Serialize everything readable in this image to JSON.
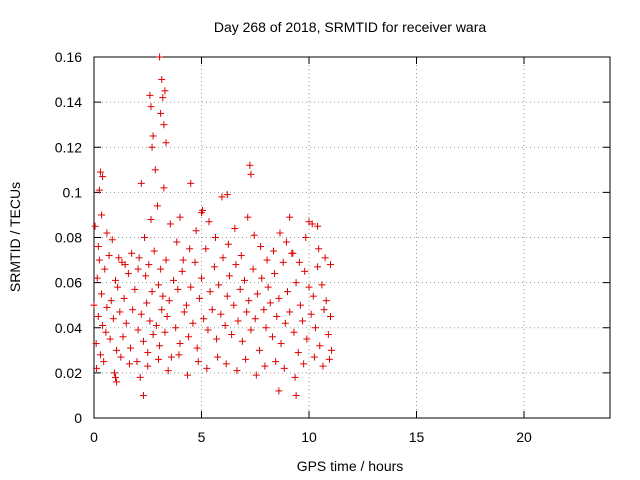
{
  "chart_data": {
    "type": "scatter",
    "title": "Day 268 of 2018, SRMTID for receiver wara",
    "xlabel": "GPS time / hours",
    "ylabel": "SRMTID / TECUs",
    "xlim": [
      0,
      24
    ],
    "ylim": [
      0,
      0.16
    ],
    "xticks": [
      0,
      5,
      10,
      15,
      20
    ],
    "xtick_labels": [
      "0",
      "5",
      "10",
      "15",
      "20"
    ],
    "yticks": [
      0,
      0.02,
      0.04,
      0.06,
      0.08,
      0.1,
      0.12,
      0.14,
      0.16
    ],
    "ytick_labels": [
      "0",
      "0.02",
      "0.04",
      "0.06",
      "0.08",
      "0.1",
      "0.12",
      "0.14",
      "0.16"
    ],
    "grid": true,
    "marker": "+",
    "color": "#dd0000",
    "series": [
      {
        "name": "SRMTID",
        "x": [
          0.0,
          0.1,
          0.15,
          0.2,
          0.25,
          0.3,
          0.35,
          0.4,
          0.5,
          0.55,
          0.6,
          0.7,
          0.75,
          0.8,
          0.9,
          1.0,
          1.05,
          1.1,
          1.2,
          1.3,
          1.35,
          1.4,
          1.5,
          1.6,
          1.7,
          1.8,
          1.9,
          2.0,
          2.05,
          2.1,
          2.2,
          2.3,
          2.4,
          2.45,
          2.5,
          2.55,
          2.6,
          2.7,
          2.75,
          2.8,
          2.9,
          3.0,
          3.05,
          3.1,
          3.15,
          3.2,
          3.3,
          3.35,
          3.4,
          3.5,
          3.6,
          3.7,
          3.8,
          3.9,
          4.0,
          4.1,
          4.2,
          4.3,
          4.4,
          4.5,
          4.6,
          4.7,
          4.8,
          4.9,
          5.0,
          5.1,
          5.2,
          5.3,
          5.4,
          5.5,
          5.6,
          5.7,
          5.8,
          5.9,
          6.0,
          6.1,
          6.2,
          6.3,
          6.4,
          6.5,
          6.6,
          6.7,
          6.8,
          6.9,
          7.0,
          7.1,
          7.2,
          7.3,
          7.4,
          7.5,
          7.6,
          7.7,
          7.8,
          7.9,
          8.0,
          8.1,
          8.2,
          8.3,
          8.4,
          8.5,
          8.6,
          8.7,
          8.8,
          8.9,
          9.0,
          9.1,
          9.2,
          9.3,
          9.4,
          9.5,
          9.6,
          9.7,
          9.8,
          9.9,
          10.0,
          10.1,
          10.2,
          10.3,
          10.4,
          10.5,
          10.6,
          10.7,
          10.8,
          10.9,
          11.0,
          11.05,
          0.05,
          0.2,
          0.35,
          0.6,
          0.85,
          1.15,
          1.45,
          1.75,
          2.05,
          2.35,
          2.65,
          2.95,
          3.25,
          3.55,
          3.85,
          4.15,
          4.45,
          4.75,
          5.05,
          5.35,
          5.65,
          5.95,
          6.25,
          6.55,
          6.85,
          7.15,
          7.45,
          7.75,
          8.05,
          8.35,
          8.65,
          8.95,
          9.25,
          9.55,
          9.85,
          10.15,
          10.45,
          10.75,
          11.0,
          0.12,
          0.45,
          0.95,
          1.25,
          1.65,
          2.15,
          2.5,
          3.0,
          3.45,
          3.95,
          4.35,
          4.85,
          5.25,
          5.75,
          6.15,
          6.65,
          7.05,
          7.55,
          7.95,
          8.45,
          8.85,
          9.35,
          9.75,
          10.25,
          10.65,
          10.95,
          2.7,
          2.75,
          3.1,
          3.15,
          3.2,
          3.25,
          2.6,
          2.65,
          3.3,
          3.35,
          2.85,
          3.05,
          7.25,
          7.3,
          6.2,
          5.0,
          4.0,
          9.1,
          10.0,
          10.4,
          0.25,
          0.3,
          0.4,
          2.3,
          8.6,
          9.4,
          1.0,
          1.05,
          2.2,
          4.5
        ],
        "y": [
          0.05,
          0.033,
          0.062,
          0.045,
          0.07,
          0.028,
          0.055,
          0.041,
          0.066,
          0.038,
          0.049,
          0.072,
          0.035,
          0.052,
          0.044,
          0.061,
          0.03,
          0.058,
          0.047,
          0.069,
          0.036,
          0.053,
          0.042,
          0.064,
          0.031,
          0.048,
          0.057,
          0.025,
          0.039,
          0.071,
          0.046,
          0.034,
          0.063,
          0.051,
          0.029,
          0.068,
          0.043,
          0.056,
          0.037,
          0.074,
          0.041,
          0.059,
          0.032,
          0.066,
          0.048,
          0.054,
          0.038,
          0.07,
          0.045,
          0.052,
          0.027,
          0.061,
          0.04,
          0.057,
          0.033,
          0.065,
          0.047,
          0.05,
          0.036,
          0.058,
          0.042,
          0.069,
          0.031,
          0.053,
          0.062,
          0.044,
          0.075,
          0.039,
          0.056,
          0.048,
          0.067,
          0.035,
          0.059,
          0.046,
          0.071,
          0.041,
          0.054,
          0.063,
          0.037,
          0.05,
          0.068,
          0.043,
          0.057,
          0.034,
          0.061,
          0.047,
          0.052,
          0.039,
          0.066,
          0.044,
          0.055,
          0.03,
          0.062,
          0.048,
          0.04,
          0.058,
          0.051,
          0.036,
          0.064,
          0.045,
          0.053,
          0.033,
          0.069,
          0.042,
          0.056,
          0.047,
          0.073,
          0.038,
          0.06,
          0.029,
          0.05,
          0.043,
          0.065,
          0.035,
          0.058,
          0.046,
          0.054,
          0.04,
          0.067,
          0.032,
          0.059,
          0.048,
          0.052,
          0.037,
          0.045,
          0.03,
          0.085,
          0.076,
          0.09,
          0.082,
          0.079,
          0.071,
          0.068,
          0.073,
          0.066,
          0.08,
          0.088,
          0.094,
          0.102,
          0.086,
          0.078,
          0.07,
          0.075,
          0.083,
          0.092,
          0.087,
          0.08,
          0.098,
          0.077,
          0.084,
          0.072,
          0.089,
          0.081,
          0.076,
          0.07,
          0.074,
          0.082,
          0.078,
          0.073,
          0.069,
          0.08,
          0.086,
          0.075,
          0.071,
          0.068,
          0.022,
          0.025,
          0.02,
          0.027,
          0.024,
          0.018,
          0.023,
          0.026,
          0.021,
          0.028,
          0.019,
          0.025,
          0.022,
          0.027,
          0.024,
          0.021,
          0.026,
          0.019,
          0.023,
          0.025,
          0.022,
          0.018,
          0.024,
          0.027,
          0.023,
          0.026,
          0.12,
          0.125,
          0.135,
          0.15,
          0.142,
          0.13,
          0.143,
          0.138,
          0.145,
          0.122,
          0.11,
          0.16,
          0.112,
          0.108,
          0.099,
          0.091,
          0.089,
          0.089,
          0.087,
          0.085,
          0.101,
          0.109,
          0.107,
          0.01,
          0.012,
          0.01,
          0.018,
          0.016,
          0.104,
          0.104
        ],
        "name_label": ""
      }
    ]
  }
}
